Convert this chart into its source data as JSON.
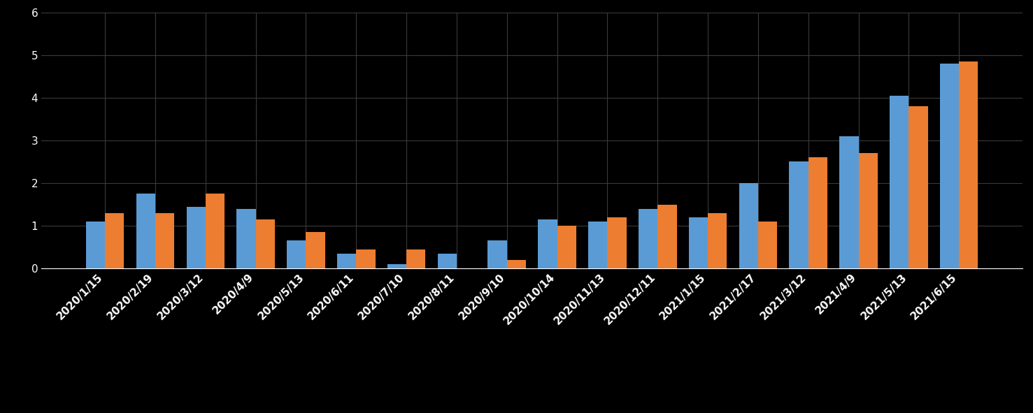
{
  "categories": [
    "2020/1/15",
    "2020/2/19",
    "2020/3/12",
    "2020/4/9",
    "2020/5/13",
    "2020/6/11",
    "2020/7/10",
    "2020/8/11",
    "2020/9/10",
    "2020/10/14",
    "2020/11/13",
    "2020/12/11",
    "2021/1/15",
    "2021/2/17",
    "2021/3/12",
    "2021/4/9",
    "2021/5/13",
    "2021/6/15"
  ],
  "blue_values": [
    1.1,
    1.75,
    1.45,
    1.4,
    0.65,
    0.35,
    0.1,
    0.35,
    0.65,
    1.15,
    1.1,
    1.4,
    1.2,
    2.0,
    2.5,
    3.1,
    4.05,
    4.8
  ],
  "orange_values": [
    1.3,
    1.3,
    1.75,
    1.15,
    0.85,
    0.45,
    0.45,
    0.0,
    0.2,
    1.0,
    1.2,
    1.5,
    1.3,
    1.1,
    2.6,
    2.7,
    3.8,
    4.85
  ],
  "blue_color": "#5B9BD5",
  "orange_color": "#ED7D31",
  "background_color": "#000000",
  "grid_color": "#3a3a3a",
  "text_color": "#ffffff",
  "ylim": [
    0,
    6
  ],
  "yticks": [
    0,
    1,
    2,
    3,
    4,
    5,
    6
  ],
  "bar_width": 0.38
}
